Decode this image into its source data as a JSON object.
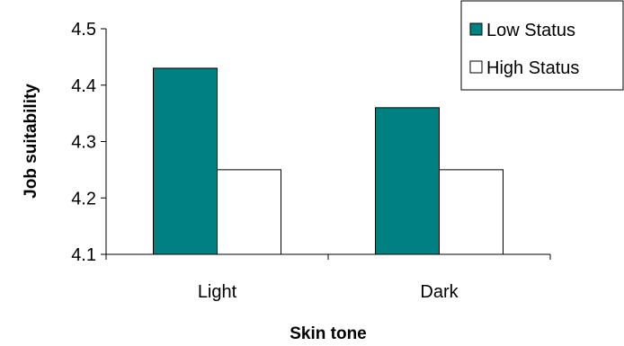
{
  "chart_data": {
    "type": "bar",
    "title": "",
    "xlabel": "Skin tone",
    "ylabel": "Job suitability",
    "categories": [
      "Light",
      "Dark"
    ],
    "series": [
      {
        "name": "Low Status",
        "values": [
          4.43,
          4.36
        ],
        "color": "#008080"
      },
      {
        "name": "High Status",
        "values": [
          4.25,
          4.25
        ],
        "color": "#ffffff"
      }
    ],
    "ylim": [
      4.1,
      4.5
    ],
    "yticks": [
      "4.1",
      "4.2",
      "4.3",
      "4.4",
      "4.5"
    ],
    "grid": false,
    "legend": "top-right"
  }
}
